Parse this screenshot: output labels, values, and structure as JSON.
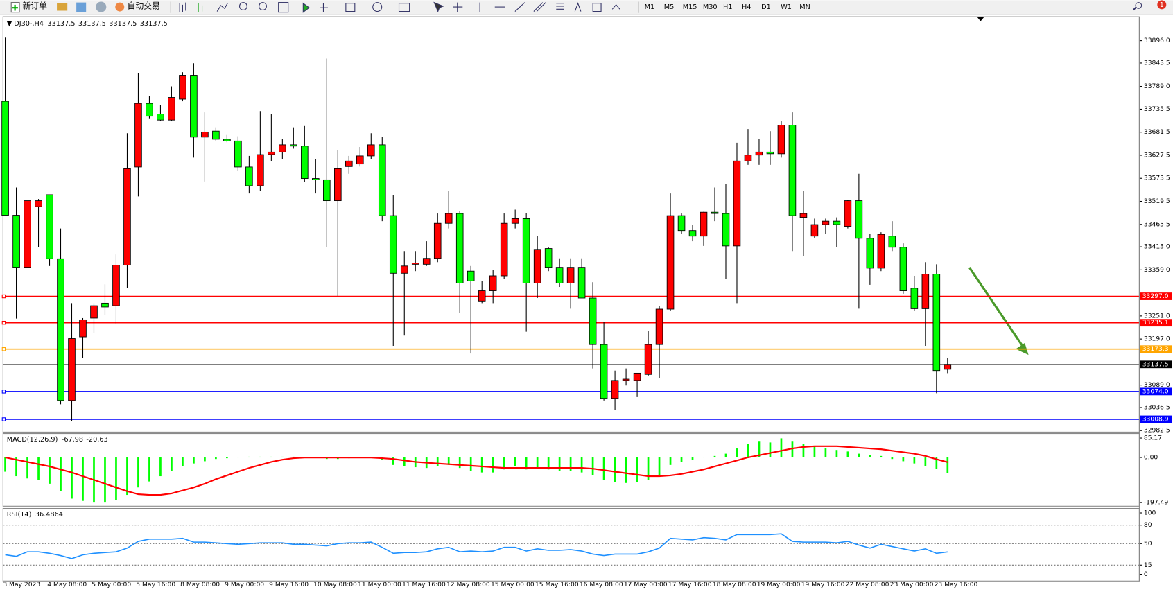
{
  "toolbar": {
    "new_order": "新订单",
    "auto_trading": "自动交易",
    "timeframes": [
      "M1",
      "M5",
      "M15",
      "M30",
      "H1",
      "H4",
      "D1",
      "W1",
      "MN"
    ],
    "notifications": 1
  },
  "chart_data": [
    {
      "type": "candlestick",
      "symbol": "DJ30-,H4",
      "header_values": [
        33137.5,
        33137.5,
        33137.5,
        33137.5
      ],
      "categories": [
        "3 May 2023",
        null,
        null,
        null,
        "4 May 08:00",
        null,
        null,
        null,
        "5 May 00:00",
        null,
        null,
        null,
        "5 May 16:00",
        null,
        null,
        null,
        "8 May 08:00",
        null,
        null,
        null,
        "9 May 00:00",
        null,
        null,
        null,
        "9 May 16:00",
        null,
        null,
        null,
        "10 May 08:00",
        null,
        null,
        null,
        "11 May 00:00",
        null,
        null,
        null,
        "11 May 16:00",
        null,
        null,
        null,
        "12 May 08:00",
        null,
        null,
        null,
        "15 May 00:00",
        null,
        null,
        null,
        "15 May 16:00",
        null,
        null,
        null,
        "16 May 08:00",
        null,
        null,
        null,
        "17 May 00:00",
        null,
        null,
        null,
        "17 May 16:00",
        null,
        null,
        null,
        "18 May 08:00",
        null,
        null,
        null,
        "19 May 00:00",
        null,
        null,
        null,
        "19 May 16:00",
        null,
        null,
        null,
        "22 May 08:00",
        null,
        null,
        null,
        "23 May 00:00",
        null,
        null,
        null,
        "23 May 16:00",
        null
      ],
      "candles": [
        [
          33754,
          33903,
          33487,
          33487
        ],
        [
          33487,
          33552,
          33245,
          33365
        ],
        [
          33365,
          33521,
          33365,
          33521
        ],
        [
          33507,
          33525,
          33412,
          33521
        ],
        [
          33535,
          33535,
          33368,
          33385
        ],
        [
          33385,
          33456,
          33044,
          33053
        ],
        [
          33053,
          33281,
          33005,
          33198
        ],
        [
          33202,
          33246,
          33153,
          33242
        ],
        [
          33246,
          33281,
          33210,
          33275
        ],
        [
          33281,
          33325,
          33254,
          33272
        ],
        [
          33275,
          33395,
          33233,
          33370
        ],
        [
          33370,
          33679,
          33316,
          33596
        ],
        [
          33600,
          33819,
          33531,
          33749
        ],
        [
          33749,
          33766,
          33714,
          33719
        ],
        [
          33724,
          33745,
          33707,
          33710
        ],
        [
          33710,
          33789,
          33707,
          33763
        ],
        [
          33759,
          33822,
          33754,
          33815
        ],
        [
          33815,
          33843,
          33622,
          33670
        ],
        [
          33670,
          33728,
          33566,
          33682
        ],
        [
          33684,
          33693,
          33661,
          33665
        ],
        [
          33665,
          33675,
          33658,
          33661
        ],
        [
          33661,
          33672,
          33591,
          33600
        ],
        [
          33600,
          33626,
          33538,
          33556
        ],
        [
          33556,
          33731,
          33544,
          33629
        ],
        [
          33629,
          33724,
          33614,
          33635
        ],
        [
          33635,
          33666,
          33619,
          33652
        ],
        [
          33652,
          33693,
          33643,
          33649
        ],
        [
          33649,
          33696,
          33565,
          33573
        ],
        [
          33573,
          33619,
          33538,
          33570
        ],
        [
          33570,
          33854,
          33412,
          33521
        ],
        [
          33521,
          33640,
          33298,
          33596
        ],
        [
          33601,
          33626,
          33584,
          33614
        ],
        [
          33607,
          33647,
          33601,
          33626
        ],
        [
          33626,
          33679,
          33619,
          33652
        ],
        [
          33652,
          33670,
          33473,
          33486
        ],
        [
          33486,
          33535,
          33181,
          33351
        ],
        [
          33351,
          33403,
          33205,
          33368
        ],
        [
          33372,
          33403,
          33356,
          33375
        ],
        [
          33372,
          33426,
          33368,
          33386
        ],
        [
          33386,
          33491,
          33377,
          33468
        ],
        [
          33468,
          33544,
          33456,
          33491
        ],
        [
          33491,
          33496,
          33258,
          33328
        ],
        [
          33356,
          33368,
          33163,
          33333
        ],
        [
          33286,
          33333,
          33281,
          33310
        ],
        [
          33310,
          33359,
          33281,
          33345
        ],
        [
          33345,
          33491,
          33338,
          33468
        ],
        [
          33468,
          33500,
          33456,
          33479
        ],
        [
          33479,
          33491,
          33214,
          33328
        ],
        [
          33328,
          33438,
          33293,
          33407
        ],
        [
          33409,
          33412,
          33356,
          33365
        ],
        [
          33365,
          33386,
          33319,
          33328
        ],
        [
          33328,
          33386,
          33268,
          33365
        ],
        [
          33365,
          33386,
          33293,
          33293
        ],
        [
          33293,
          33330,
          33128,
          33184
        ],
        [
          33184,
          33237,
          33053,
          33058
        ],
        [
          33058,
          33123,
          33030,
          33100
        ],
        [
          33100,
          33128,
          33088,
          33103
        ],
        [
          33100,
          33117,
          33061,
          33117
        ],
        [
          33114,
          33216,
          33110,
          33184
        ],
        [
          33184,
          33275,
          33105,
          33267
        ],
        [
          33267,
          33538,
          33263,
          33486
        ],
        [
          33486,
          33491,
          33444,
          33451
        ],
        [
          33451,
          33465,
          33426,
          33438
        ],
        [
          33438,
          33495,
          33415,
          33494
        ],
        [
          33494,
          33552,
          33473,
          33491
        ],
        [
          33491,
          33561,
          33337,
          33415
        ],
        [
          33415,
          33657,
          33281,
          33614
        ],
        [
          33614,
          33689,
          33605,
          33628
        ],
        [
          33628,
          33666,
          33605,
          33635
        ],
        [
          33635,
          33684,
          33605,
          33631
        ],
        [
          33631,
          33707,
          33622,
          33698
        ],
        [
          33698,
          33728,
          33403,
          33486
        ],
        [
          33482,
          33544,
          33391,
          33491
        ],
        [
          33438,
          33479,
          33433,
          33465
        ],
        [
          33465,
          33479,
          33444,
          33473
        ],
        [
          33473,
          33482,
          33412,
          33465
        ],
        [
          33461,
          33523,
          33456,
          33521
        ],
        [
          33521,
          33584,
          33268,
          33433
        ],
        [
          33433,
          33444,
          33324,
          33363
        ],
        [
          33363,
          33447,
          33356,
          33442
        ],
        [
          33438,
          33473,
          33403,
          33412
        ],
        [
          33412,
          33421,
          33303,
          33310
        ],
        [
          33316,
          33345,
          33263,
          33268
        ],
        [
          33268,
          33377,
          33181,
          33349
        ],
        [
          33349,
          33372,
          33070,
          33123
        ],
        [
          33126,
          33152,
          33117,
          33137.5
        ]
      ],
      "up_color": "#ff0000",
      "down_color": "#00ff00",
      "ylim": [
        32979,
        33952
      ],
      "yticks": [
        {
          "value": 33896.0,
          "label": "33896.0"
        },
        {
          "value": 33843.5,
          "label": "33843.5"
        },
        {
          "value": 33789.0,
          "label": "33789.0"
        },
        {
          "value": 33735.5,
          "label": "33735.5"
        },
        {
          "value": 33681.5,
          "label": "33681.5"
        },
        {
          "value": 33627.5,
          "label": "33627.5"
        },
        {
          "value": 33573.5,
          "label": "33573.5"
        },
        {
          "value": 33519.5,
          "label": "33519.5"
        },
        {
          "value": 33465.5,
          "label": "33465.5"
        },
        {
          "value": 33413.0,
          "label": "33413.0"
        },
        {
          "value": 33359.0,
          "label": "33359.0"
        },
        {
          "value": 33251.0,
          "label": "33251.0"
        },
        {
          "value": 33197.0,
          "label": "33197.0"
        },
        {
          "value": 33089.0,
          "label": "33089.0"
        },
        {
          "value": 33036.5,
          "label": "33036.5"
        },
        {
          "value": 32982.5,
          "label": "32982.5"
        }
      ],
      "levels": [
        {
          "value": 33297.0,
          "label": "33297.0",
          "color": "#ff0000"
        },
        {
          "value": 33235.1,
          "label": "33235.1",
          "color": "#ff0000"
        },
        {
          "value": 33173.3,
          "label": "33173.3",
          "color": "#ffa500"
        },
        {
          "value": 33074.0,
          "label": "33074.0",
          "color": "#0000ff"
        },
        {
          "value": 33008.9,
          "label": "33008.9",
          "color": "#0000ff"
        }
      ],
      "current_price": {
        "value": 33137.5,
        "label": "33137.5"
      }
    },
    {
      "type": "macd",
      "title": "MACD(12,26,9)",
      "readout": [
        -67.98,
        -20.63
      ],
      "histogram": [
        -62.5,
        -82.3,
        -92.1,
        -98.7,
        -115.2,
        -148.1,
        -181.0,
        -190.8,
        -195.0,
        -195.0,
        -187.5,
        -164.5,
        -131.6,
        -105.3,
        -82.3,
        -59.2,
        -39.5,
        -26.3,
        -16.5,
        -6.6,
        -3.3,
        0.5,
        3.3,
        3.3,
        3.3,
        3.3,
        3.3,
        0.8,
        0.5,
        -6.6,
        -6.6,
        -3.3,
        -1.2,
        -0.8,
        -9.9,
        -32.9,
        -39.5,
        -42.8,
        -46.1,
        -39.5,
        -32.9,
        -46.1,
        -59.2,
        -65.8,
        -65.8,
        -52.6,
        -39.5,
        -52.6,
        -49.4,
        -52.6,
        -59.2,
        -59.2,
        -65.8,
        -79.0,
        -98.7,
        -108.6,
        -111.9,
        -108.6,
        -98.7,
        -79.0,
        -32.9,
        -19.7,
        -9.9,
        0.9,
        6.6,
        16.5,
        39.5,
        59.2,
        72.4,
        65.8,
        84.0,
        72.4,
        59.2,
        49.4,
        39.5,
        32.9,
        26.3,
        16.5,
        9.9,
        6.6,
        -6.6,
        -16.5,
        -26.3,
        -39.5,
        -49.4,
        -67.98
      ],
      "signal": [
        0,
        -9.9,
        -19.7,
        -29.6,
        -39.5,
        -52.6,
        -65.8,
        -82.3,
        -98.7,
        -115.2,
        -131.6,
        -148.1,
        -161.2,
        -164.5,
        -164.5,
        -157.9,
        -144.8,
        -131.6,
        -115.2,
        -95.4,
        -79.0,
        -62.5,
        -46.1,
        -32.9,
        -19.7,
        -9.9,
        -3.3,
        -0.5,
        -0.5,
        -0.5,
        -0.5,
        -0.5,
        -0.5,
        -0.5,
        -3.3,
        -6.6,
        -13.2,
        -19.7,
        -23.0,
        -26.3,
        -29.6,
        -32.9,
        -36.2,
        -39.5,
        -42.8,
        -46.1,
        -46.1,
        -46.1,
        -46.1,
        -46.1,
        -46.1,
        -46.1,
        -46.1,
        -49.4,
        -55.9,
        -62.5,
        -69.1,
        -75.7,
        -82.3,
        -82.3,
        -79.0,
        -72.4,
        -62.5,
        -52.6,
        -39.5,
        -26.3,
        -13.2,
        0.5,
        9.9,
        19.7,
        29.6,
        39.5,
        46.1,
        49.4,
        49.4,
        49.4,
        46.1,
        42.8,
        39.5,
        36.2,
        29.6,
        23.0,
        16.5,
        6.6,
        -8.0,
        -20.63
      ],
      "histogram_color": "#00ff00",
      "signal_color": "#ff0000",
      "ylim": [
        -197.49,
        85.17
      ],
      "yticks": [
        -197.49,
        {
          "value": 0,
          "label": "0.00"
        },
        85.17
      ]
    },
    {
      "type": "rsi",
      "title": "RSI(14)",
      "readout": 36.4864,
      "values": [
        31.7,
        29.3,
        36.6,
        36.6,
        34.1,
        30.5,
        25.6,
        31.7,
        34.1,
        35.4,
        36.6,
        42.7,
        53.7,
        57.3,
        57.3,
        57.3,
        58.5,
        52.4,
        52.4,
        51.2,
        50.0,
        48.8,
        50.0,
        51.2,
        51.2,
        51.2,
        48.8,
        48.8,
        47.6,
        46.3,
        50.0,
        51.2,
        51.2,
        52.4,
        43.9,
        34.1,
        35.4,
        35.4,
        36.6,
        41.5,
        43.9,
        36.6,
        37.8,
        36.6,
        37.8,
        43.9,
        43.9,
        37.8,
        41.5,
        39.0,
        39.0,
        40.2,
        37.8,
        32.9,
        30.5,
        32.9,
        32.9,
        32.9,
        36.6,
        42.7,
        58.5,
        57.3,
        56.1,
        59.8,
        58.5,
        56.1,
        64.6,
        64.6,
        64.6,
        64.6,
        65.9,
        53.7,
        52.4,
        52.4,
        52.4,
        51.2,
        53.7,
        47.6,
        42.7,
        48.8,
        45.1,
        41.5,
        37.8,
        41.5,
        34.1,
        36.4864
      ],
      "color": "#1e90ff",
      "ylim": [
        0,
        100
      ],
      "yticks": [
        0,
        15,
        50,
        80,
        100
      ]
    }
  ]
}
